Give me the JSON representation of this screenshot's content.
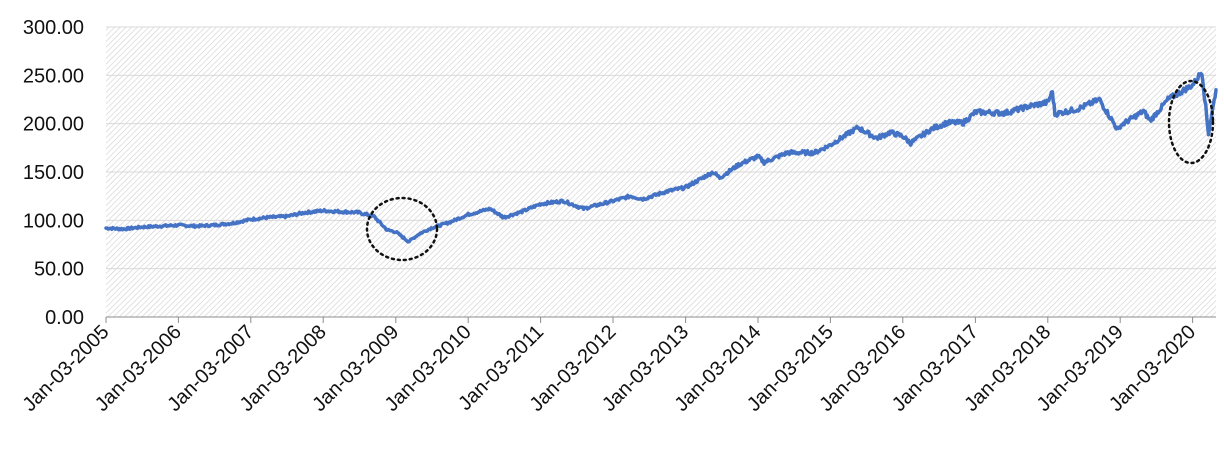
{
  "chart_data": {
    "type": "line",
    "title": "",
    "xlabel": "",
    "ylabel": "",
    "ylim": [
      0,
      300
    ],
    "y_ticks": [
      "0.00",
      "50.00",
      "100.00",
      "150.00",
      "200.00",
      "250.00",
      "300.00"
    ],
    "x_ticks": [
      "Jan-03-2005",
      "Jan-03-2006",
      "Jan-03-2007",
      "Jan-03-2008",
      "Jan-03-2009",
      "Jan-03-2010",
      "Jan-03-2011",
      "Jan-03-2012",
      "Jan-03-2013",
      "Jan-03-2014",
      "Jan-03-2015",
      "Jan-03-2016",
      "Jan-03-2017",
      "Jan-03-2018",
      "Jan-03-2019",
      "Jan-03-2020"
    ],
    "x_range": [
      "2005-01-03",
      "2020-04-30"
    ],
    "legend": "none",
    "grid": "horizontal",
    "plot_background": "light gray hatched",
    "line_color": "#4472C4",
    "series": [
      {
        "x": [
          "2005-01-03",
          "2005-04-01",
          "2005-07-01",
          "2005-10-01",
          "2006-01-03",
          "2006-04-01",
          "2006-07-01",
          "2006-10-01",
          "2007-01-03",
          "2007-04-01",
          "2007-07-01",
          "2007-10-01",
          "2008-01-03",
          "2008-04-01",
          "2008-07-01",
          "2008-09-15",
          "2008-11-20",
          "2009-01-03",
          "2009-03-09",
          "2009-05-01",
          "2009-07-01",
          "2009-10-01",
          "2010-01-03",
          "2010-04-23",
          "2010-07-01",
          "2010-10-01",
          "2011-01-03",
          "2011-04-29",
          "2011-08-08",
          "2011-10-01",
          "2012-01-03",
          "2012-04-01",
          "2012-06-01",
          "2012-10-01",
          "2013-01-03",
          "2013-05-21",
          "2013-06-24",
          "2013-10-01",
          "2014-01-03",
          "2014-02-03",
          "2014-06-01",
          "2014-10-15",
          "2015-01-03",
          "2015-05-21",
          "2015-08-25",
          "2015-11-01",
          "2016-01-03",
          "2016-02-11",
          "2016-06-01",
          "2016-08-15",
          "2016-11-04",
          "2017-01-03",
          "2017-06-01",
          "2017-10-01",
          "2018-01-03",
          "2018-01-26",
          "2018-02-08",
          "2018-06-01",
          "2018-09-20",
          "2018-12-24",
          "2019-01-03",
          "2019-05-01",
          "2019-06-03",
          "2019-09-01",
          "2020-01-03",
          "2020-02-19",
          "2020-03-23",
          "2020-04-30"
        ],
        "y": [
          92,
          91,
          93,
          94,
          95,
          94,
          95,
          97,
          101,
          103,
          104,
          108,
          110,
          109,
          108,
          104,
          90,
          88,
          78,
          86,
          92,
          98,
          106,
          112,
          103,
          109,
          117,
          120,
          112,
          115,
          120,
          125,
          122,
          130,
          134,
          150,
          144,
          158,
          166,
          160,
          170,
          170,
          178,
          196,
          185,
          191,
          187,
          180,
          195,
          201,
          201,
          212,
          211,
          218,
          222,
          233,
          210,
          215,
          225,
          193,
          198,
          213,
          203,
          225,
          240,
          254,
          190,
          235
        ]
      }
    ],
    "annotations": [
      {
        "shape": "dotted-ellipse",
        "around": "2009 trough"
      },
      {
        "shape": "dotted-ellipse",
        "around": "2020 drop"
      }
    ]
  }
}
